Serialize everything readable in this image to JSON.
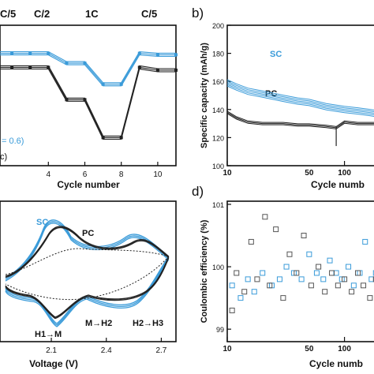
{
  "chart_data": [
    {
      "panel": "a",
      "type": "line",
      "xlabel": "Cycle number",
      "x_ticks": [
        4,
        6,
        8,
        10
      ],
      "xlim": [
        1,
        11
      ],
      "rate_labels": [
        "C/5",
        "C/2",
        "1C",
        "C/5"
      ],
      "rate_label_x": [
        1.2,
        5,
        7.5,
        10
      ],
      "legend_fragments": [
        "= 0.6)",
        "c)"
      ],
      "y_data_units": "relative (y-axis not visible)",
      "series": [
        {
          "color": "#3a9bd9",
          "x": [
            1,
            2,
            3,
            4,
            5,
            6,
            7,
            8,
            9,
            10,
            11
          ],
          "y": [
            0.8,
            0.8,
            0.8,
            0.8,
            0.73,
            0.73,
            0.58,
            0.58,
            0.8,
            0.79,
            0.79
          ]
        },
        {
          "color": "#222222",
          "x": [
            1,
            2,
            3,
            4,
            5,
            6,
            7,
            8,
            9,
            10,
            11
          ],
          "y": [
            0.7,
            0.7,
            0.7,
            0.7,
            0.47,
            0.47,
            0.2,
            0.2,
            0.7,
            0.68,
            0.68
          ]
        }
      ]
    },
    {
      "panel": "b",
      "type": "line",
      "panel_label": "b)",
      "ylabel": "Specific capacity (mAh/g)",
      "xlabel": "Cycle numb",
      "x_scale": "log",
      "x_ticks": [
        10,
        100
      ],
      "x_tick_labels": [
        "10",
        "100"
      ],
      "x_minor_tick_labels": [
        {
          "x": 50,
          "label": "50"
        }
      ],
      "xlim": [
        10,
        190
      ],
      "y_ticks": [
        100,
        120,
        140,
        160,
        180,
        200
      ],
      "ylim": [
        100,
        200
      ],
      "series": [
        {
          "name": "SC",
          "color": "#3a9bd9",
          "x": [
            10,
            12,
            15,
            20,
            30,
            40,
            50,
            70,
            100,
            130,
            160,
            190
          ],
          "y": [
            159,
            156,
            153,
            151,
            148,
            146,
            145,
            142,
            140,
            139,
            138,
            137
          ]
        },
        {
          "name": "PC",
          "color": "#222222",
          "x": [
            10,
            12,
            15,
            20,
            30,
            40,
            50,
            70,
            85,
            100,
            130,
            160,
            190
          ],
          "y": [
            138,
            134,
            131,
            130,
            130,
            129,
            129,
            128,
            127,
            131,
            130,
            130,
            130
          ]
        }
      ]
    },
    {
      "panel": "c",
      "type": "line",
      "xlabel": "Voltage (V)",
      "x_ticks": [
        2.1,
        2.4,
        2.7
      ],
      "x_tick_labels": [
        "2.1",
        "2.4",
        "2.7"
      ],
      "xlim": [
        1.82,
        2.78
      ],
      "y_data_units": "relative current (y-axis not visible)",
      "annotations": [
        "H1→M",
        "M→H2",
        "H2→H3"
      ],
      "series": [
        {
          "name": "SC",
          "color": "#3a9bd9"
        },
        {
          "name": "PC",
          "color": "#222222"
        }
      ]
    },
    {
      "panel": "d",
      "type": "scatter",
      "panel_label": "d)",
      "ylabel": "Coulombic efficiency (%)",
      "xlabel": "Cycle numb",
      "x_scale": "log",
      "x_ticks": [
        10,
        100
      ],
      "x_tick_labels": [
        "10",
        "100"
      ],
      "x_minor_tick_labels": [
        {
          "x": 50,
          "label": "50"
        }
      ],
      "xlim": [
        10,
        190
      ],
      "y_ticks": [
        99,
        100,
        101
      ],
      "ylim": [
        98.8,
        101.05
      ],
      "series": [
        {
          "color": "#3a9bd9",
          "x": [
            11,
            13,
            15,
            17,
            20,
            24,
            28,
            32,
            37,
            43,
            50,
            58,
            66,
            75,
            85,
            95,
            108,
            120,
            135,
            150,
            170,
            185
          ],
          "y": [
            99.7,
            99.5,
            99.8,
            99.6,
            99.9,
            99.7,
            99.8,
            100.0,
            99.9,
            99.8,
            100.2,
            99.9,
            99.8,
            100.1,
            99.9,
            99.8,
            100.0,
            99.7,
            99.9,
            100.4,
            99.8,
            99.9
          ]
        },
        {
          "color": "#555555",
          "x": [
            11,
            12,
            14,
            16,
            18,
            21,
            23,
            26,
            30,
            34,
            39,
            45,
            52,
            60,
            68,
            78,
            88,
            100,
            115,
            130,
            145,
            165,
            185
          ],
          "y": [
            99.3,
            99.9,
            99.6,
            100.4,
            99.8,
            100.8,
            99.7,
            100.6,
            99.5,
            100.2,
            99.9,
            100.5,
            99.7,
            100.0,
            99.6,
            99.9,
            99.7,
            99.8,
            99.6,
            99.9,
            99.7,
            99.5,
            99.8
          ]
        }
      ]
    }
  ]
}
